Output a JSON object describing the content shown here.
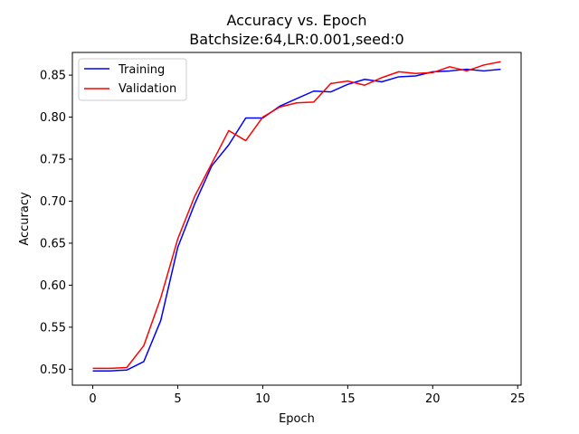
{
  "chart_data": {
    "type": "line",
    "title": "Accuracy vs. Epoch",
    "subtitle": "Batchsize:64,LR:0.001,seed:0",
    "xlabel": "Epoch",
    "ylabel": "Accuracy",
    "xlim": [
      -1.2,
      25.2
    ],
    "ylim": [
      0.481,
      0.877
    ],
    "xticks": [
      0,
      5,
      10,
      15,
      20,
      25
    ],
    "xtick_labels": [
      "0",
      "5",
      "10",
      "15",
      "20",
      "25"
    ],
    "yticks": [
      0.5,
      0.55,
      0.6,
      0.65,
      0.7,
      0.75,
      0.8,
      0.85
    ],
    "ytick_labels": [
      "0.50",
      "0.55",
      "0.60",
      "0.65",
      "0.70",
      "0.75",
      "0.80",
      "0.85"
    ],
    "grid": false,
    "legend_position": "top-left",
    "x": [
      0,
      1,
      2,
      3,
      4,
      5,
      6,
      7,
      8,
      9,
      10,
      11,
      12,
      13,
      14,
      15,
      16,
      17,
      18,
      19,
      20,
      21,
      22,
      23,
      24
    ],
    "series": [
      {
        "name": "Training",
        "color": "#0000ff",
        "values": [
          0.498,
          0.498,
          0.499,
          0.509,
          0.558,
          0.645,
          0.697,
          0.742,
          0.767,
          0.799,
          0.799,
          0.813,
          0.822,
          0.831,
          0.83,
          0.839,
          0.845,
          0.842,
          0.848,
          0.849,
          0.854,
          0.855,
          0.857,
          0.855,
          0.857
        ]
      },
      {
        "name": "Validation",
        "color": "#ff0000",
        "values": [
          0.501,
          0.501,
          0.502,
          0.528,
          0.585,
          0.655,
          0.706,
          0.745,
          0.784,
          0.772,
          0.8,
          0.812,
          0.817,
          0.818,
          0.84,
          0.843,
          0.838,
          0.847,
          0.854,
          0.852,
          0.853,
          0.86,
          0.855,
          0.862,
          0.866
        ]
      }
    ]
  }
}
